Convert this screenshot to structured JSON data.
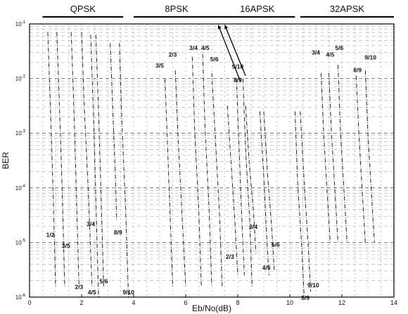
{
  "chart_data": {
    "type": "line",
    "xlabel": "Eb/No(dB)",
    "ylabel": "BER",
    "xlim": [
      0,
      14
    ],
    "ylim_log10": [
      -6,
      -1
    ],
    "log_y": true,
    "grid": true,
    "x_ticks": [
      0,
      2,
      4,
      6,
      8,
      10,
      12,
      14
    ],
    "x_tick_labels": [
      "0",
      "2",
      "4",
      "6",
      "8",
      "10",
      "12",
      "14"
    ],
    "y_ticks_log10": [
      -1,
      -2,
      -3,
      -4,
      -5,
      -6
    ],
    "y_tick_base": "10",
    "y_tick_exponents": [
      "-1",
      "-2",
      "-3",
      "-4",
      "-5",
      "-6"
    ],
    "groups": [
      {
        "name": "QPSK",
        "x_range": [
          0.5,
          3.6
        ]
      },
      {
        "name": "8PSK",
        "x_range": [
          4.0,
          7.3
        ]
      },
      {
        "name": "16APSK",
        "x_range": [
          7.3,
          10.2
        ]
      },
      {
        "name": "32APSK",
        "x_range": [
          10.4,
          14.0
        ]
      }
    ],
    "series": [
      {
        "name": "1/2",
        "group": "QPSK",
        "points": [
          [
            0.7,
            -1.15
          ],
          [
            0.8,
            -2.5
          ],
          [
            0.9,
            -4.0
          ],
          [
            1.0,
            -5.8
          ]
        ],
        "label_at": [
          0.8,
          -4.9
        ]
      },
      {
        "name": "3/5",
        "group": "QPSK",
        "points": [
          [
            1.05,
            -1.15
          ],
          [
            1.15,
            -2.5
          ],
          [
            1.25,
            -4.0
          ],
          [
            1.35,
            -5.8
          ]
        ],
        "label_at": [
          1.4,
          -5.1
        ]
      },
      {
        "name": "2/3",
        "group": "QPSK",
        "points": [
          [
            1.6,
            -1.15
          ],
          [
            1.7,
            -2.5
          ],
          [
            1.8,
            -4.1
          ],
          [
            1.9,
            -5.8
          ]
        ],
        "label_at": [
          1.9,
          -5.85
        ]
      },
      {
        "name": "3/4",
        "group": "QPSK",
        "points": [
          [
            2.0,
            -1.15
          ],
          [
            2.1,
            -2.5
          ],
          [
            2.25,
            -4.0
          ],
          [
            2.4,
            -5.8
          ]
        ],
        "label_at": [
          2.35,
          -4.7
        ]
      },
      {
        "name": "4/5",
        "group": "QPSK",
        "points": [
          [
            2.35,
            -1.2
          ],
          [
            2.45,
            -2.6
          ],
          [
            2.55,
            -4.2
          ],
          [
            2.65,
            -6.0
          ]
        ],
        "label_at": [
          2.4,
          -5.95
        ]
      },
      {
        "name": "5/6",
        "group": "QPSK",
        "points": [
          [
            2.55,
            -1.2
          ],
          [
            2.65,
            -2.6
          ],
          [
            2.75,
            -4.2
          ],
          [
            2.85,
            -5.8
          ]
        ],
        "label_at": [
          2.85,
          -5.75
        ]
      },
      {
        "name": "8/9",
        "group": "QPSK",
        "points": [
          [
            3.1,
            -1.35
          ],
          [
            3.2,
            -2.6
          ],
          [
            3.3,
            -3.8
          ],
          [
            3.35,
            -4.6
          ]
        ],
        "label_at": [
          3.4,
          -4.85
        ]
      },
      {
        "name": "9/10",
        "group": "QPSK",
        "points": [
          [
            3.45,
            -1.35
          ],
          [
            3.55,
            -2.8
          ],
          [
            3.7,
            -4.5
          ],
          [
            3.8,
            -6.0
          ]
        ],
        "label_at": [
          3.8,
          -5.95
        ]
      },
      {
        "name": "3/5",
        "group": "8PSK",
        "points": [
          [
            5.2,
            -2.0
          ],
          [
            5.3,
            -3.2
          ],
          [
            5.4,
            -4.5
          ],
          [
            5.5,
            -5.8
          ]
        ],
        "label_at": [
          5.0,
          -1.8
        ]
      },
      {
        "name": "2/3",
        "group": "8PSK",
        "points": [
          [
            5.6,
            -1.85
          ],
          [
            5.7,
            -3.0
          ],
          [
            5.85,
            -4.4
          ],
          [
            6.0,
            -5.8
          ]
        ],
        "label_at": [
          5.5,
          -1.6
        ]
      },
      {
        "name": "3/4",
        "group": "8PSK",
        "points": [
          [
            6.25,
            -1.6
          ],
          [
            6.35,
            -3.0
          ],
          [
            6.5,
            -4.4
          ],
          [
            6.6,
            -5.8
          ]
        ],
        "label_at": [
          6.3,
          -1.48
        ]
      },
      {
        "name": "4/5",
        "group": "8PSK",
        "points": [
          [
            6.65,
            -1.55
          ],
          [
            6.75,
            -3.0
          ],
          [
            6.9,
            -4.4
          ],
          [
            7.0,
            -5.8
          ]
        ],
        "label_at": [
          6.75,
          -1.48
        ]
      },
      {
        "name": "5/6",
        "group": "8PSK",
        "points": [
          [
            7.0,
            -1.9
          ],
          [
            7.15,
            -3.2
          ],
          [
            7.3,
            -4.5
          ],
          [
            7.4,
            -5.8
          ]
        ],
        "label_at": [
          7.1,
          -1.68
        ]
      },
      {
        "name": "9/10",
        "group": "8PSK",
        "points": [
          [
            8.2,
            -2.0
          ],
          [
            8.3,
            -3.3
          ],
          [
            8.45,
            -4.5
          ],
          [
            8.55,
            -5.8
          ]
        ],
        "label_at": [
          8.0,
          -1.82
        ]
      },
      {
        "name": "8/9",
        "group": "8PSK",
        "points": [
          [
            7.95,
            -2.0
          ],
          [
            8.05,
            -3.3
          ],
          [
            8.15,
            -4.5
          ],
          [
            8.25,
            -5.6
          ]
        ],
        "label_at": [
          8.0,
          -2.06
        ]
      },
      {
        "name": "2/3",
        "group": "16APSK",
        "points": [
          [
            7.6,
            -2.5
          ],
          [
            7.75,
            -3.6
          ],
          [
            7.9,
            -4.7
          ],
          [
            8.0,
            -5.6
          ]
        ],
        "label_at": [
          7.7,
          -5.3
        ]
      },
      {
        "name": "3/4",
        "group": "16APSK",
        "points": [
          [
            8.3,
            -2.5
          ],
          [
            8.45,
            -3.6
          ],
          [
            8.6,
            -4.4
          ],
          [
            8.7,
            -5.2
          ]
        ],
        "label_at": [
          8.6,
          -4.75
        ]
      },
      {
        "name": "5/6",
        "group": "16APSK",
        "points": [
          [
            9.0,
            -2.6
          ],
          [
            9.15,
            -3.8
          ],
          [
            9.3,
            -4.7
          ],
          [
            9.4,
            -5.5
          ]
        ],
        "label_at": [
          9.45,
          -5.08
        ]
      },
      {
        "name": "4/5",
        "group": "16APSK",
        "points": [
          [
            8.85,
            -2.6
          ],
          [
            9.0,
            -3.8
          ],
          [
            9.1,
            -4.8
          ],
          [
            9.2,
            -5.6
          ]
        ],
        "label_at": [
          9.1,
          -5.5
        ]
      },
      {
        "name": "9/10",
        "group": "16APSK",
        "points": [
          [
            10.4,
            -2.6
          ],
          [
            10.55,
            -3.9
          ],
          [
            10.7,
            -5.0
          ],
          [
            10.8,
            -5.9
          ]
        ],
        "label_at": [
          10.9,
          -5.82
        ]
      },
      {
        "name": "8/9",
        "group": "16APSK",
        "points": [
          [
            10.2,
            -2.6
          ],
          [
            10.3,
            -3.9
          ],
          [
            10.45,
            -5.0
          ],
          [
            10.55,
            -6.0
          ]
        ],
        "label_at": [
          10.6,
          -6.05
        ]
      },
      {
        "name": "3/4",
        "group": "32APSK",
        "points": [
          [
            11.2,
            -1.9
          ],
          [
            11.3,
            -3.0
          ],
          [
            11.45,
            -4.2
          ],
          [
            11.55,
            -5.0
          ]
        ],
        "label_at": [
          11.0,
          -1.56
        ]
      },
      {
        "name": "4/5",
        "group": "32APSK",
        "points": [
          [
            11.5,
            -1.9
          ],
          [
            11.6,
            -3.0
          ],
          [
            11.75,
            -4.2
          ],
          [
            11.85,
            -5.0
          ]
        ],
        "label_at": [
          11.55,
          -1.6
        ]
      },
      {
        "name": "5/6",
        "group": "32APSK",
        "points": [
          [
            11.85,
            -1.75
          ],
          [
            11.95,
            -3.0
          ],
          [
            12.1,
            -4.2
          ],
          [
            12.2,
            -5.0
          ]
        ],
        "label_at": [
          11.9,
          -1.48
        ]
      },
      {
        "name": "8/9",
        "group": "32APSK",
        "points": [
          [
            12.55,
            -1.95
          ],
          [
            12.65,
            -3.0
          ],
          [
            12.8,
            -4.2
          ],
          [
            12.9,
            -5.0
          ]
        ],
        "label_at": [
          12.6,
          -1.88
        ]
      },
      {
        "name": "9/10",
        "group": "32APSK",
        "points": [
          [
            12.9,
            -1.85
          ],
          [
            13.0,
            -3.0
          ],
          [
            13.15,
            -4.2
          ],
          [
            13.25,
            -5.0
          ]
        ],
        "label_at": [
          13.1,
          -1.65
        ]
      }
    ],
    "arrows": [
      {
        "from": [
          8.1,
          -2.05
        ],
        "to": [
          7.25,
          -1.02
        ]
      },
      {
        "from": [
          8.3,
          -1.95
        ],
        "to": [
          7.5,
          -1.02
        ]
      }
    ]
  }
}
